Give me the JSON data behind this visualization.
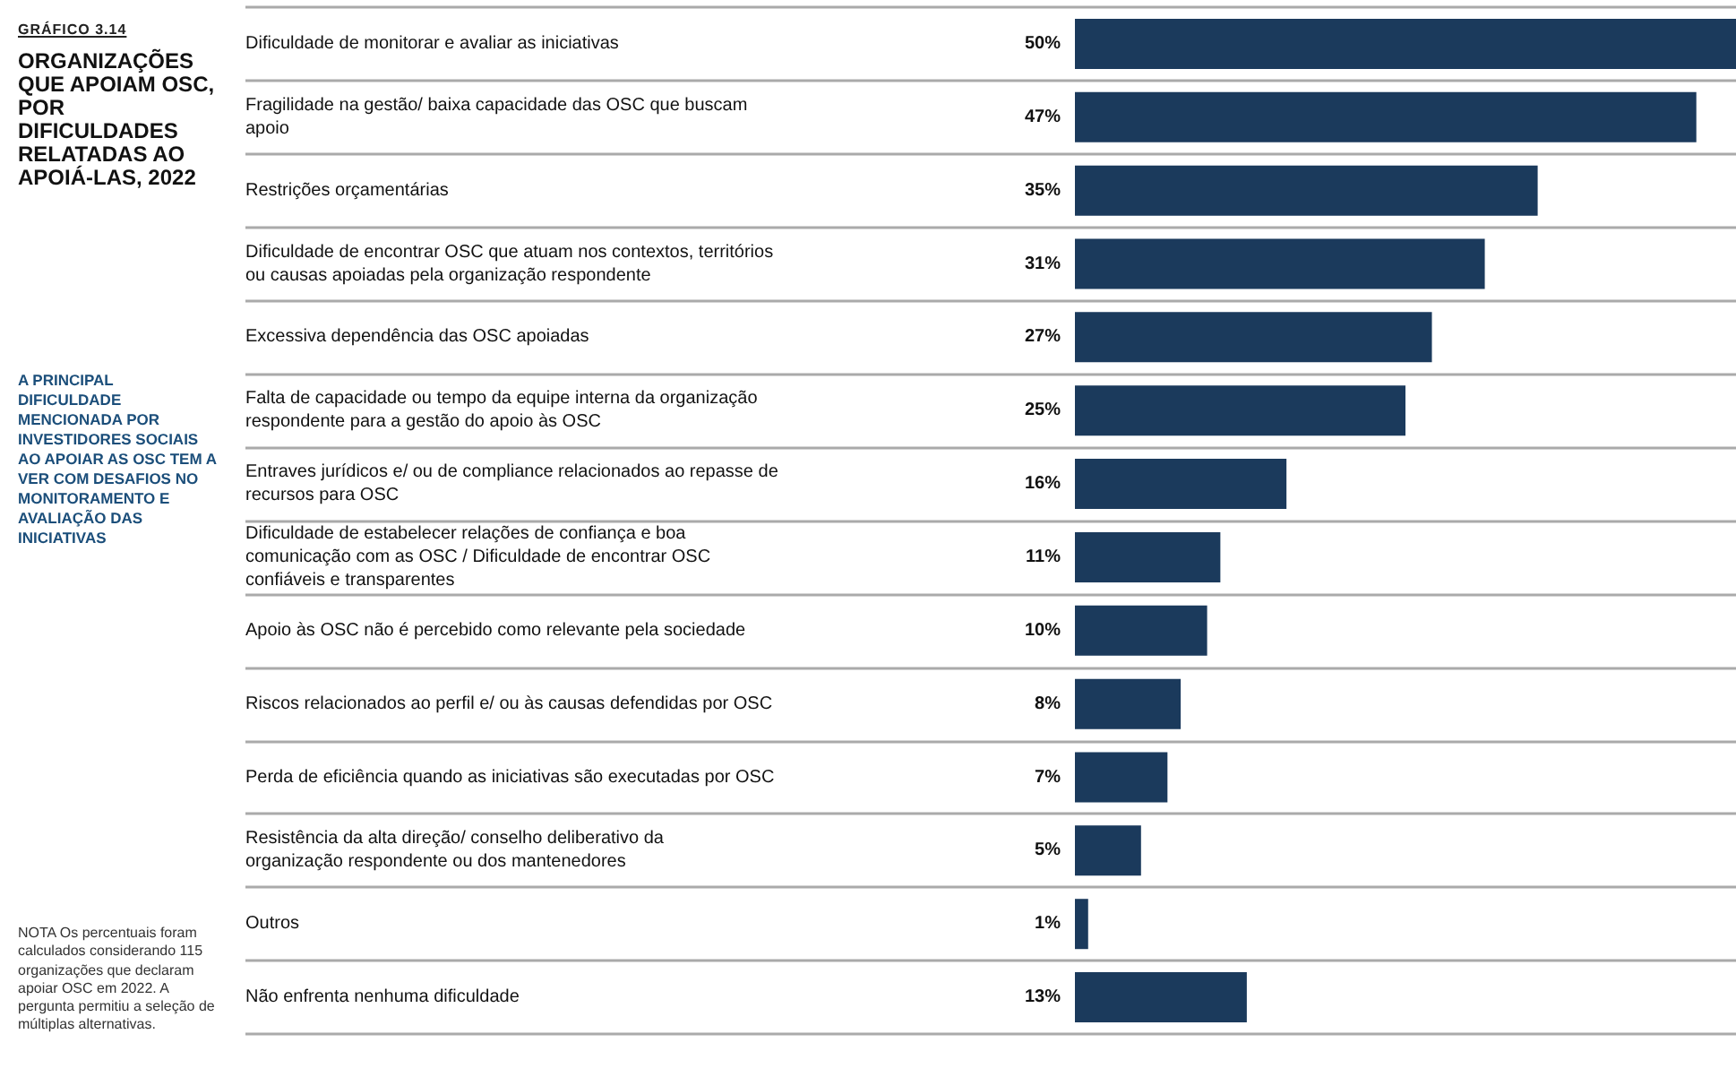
{
  "chart_data": {
    "type": "bar",
    "orientation": "horizontal",
    "title": "ORGANIZAÇÕES QUE APOIAM OSC, POR DIFICULDADES RELATADAS AO APOIÁ-LAS, 2022",
    "annotations": [
      "GRÁFICO 3.14",
      "A PRINCIPAL DIFICULDADE MENCIONADA POR INVESTIDORES SOCIAIS AO APOIAR AS OSC TEM A VER COM DESAFIOS NO MONITORAMENTO E AVALIAÇÃO DAS INICIATIVAS",
      "NOTA Os percentuais foram calculados considerando 115 organizações que declaram apoiar OSC em 2022. A pergunta permitiu a seleção de múltiplas alternativas."
    ],
    "categories": [
      "Dificuldade de monitorar e avaliar as iniciativas",
      "Fragilidade na gestão/ baixa capacidade das OSC que buscam apoio",
      "Restrições orçamentárias",
      "Dificuldade de encontrar OSC que atuam nos contextos, territórios ou causas apoiadas pela organização respondente",
      "Excessiva dependência das OSC apoiadas",
      "Falta de capacidade ou tempo da equipe interna da organização respondente para a gestão do apoio às OSC",
      "Entraves jurídicos e/ ou de compliance relacionados ao repasse de recursos para OSC",
      "Dificuldade de estabelecer relações de confiança e boa comunicação com as OSC / Dificuldade de encontrar OSC confiáveis e transparentes",
      "Apoio às OSC não é percebido como relevante pela sociedade",
      "Riscos relacionados ao perfil e/ ou às causas defendidas por OSC",
      "Perda de eficiência quando as iniciativas são executadas por OSC",
      "Resistência da alta direção/ conselho deliberativo da organização respondente ou dos mantenedores",
      "Outros",
      "Não enfrenta nenhuma dificuldade"
    ],
    "values": [
      50,
      47,
      35,
      31,
      27,
      25,
      16,
      11,
      10,
      8,
      7,
      5,
      1,
      13
    ],
    "value_labels": [
      "50%",
      "47%",
      "35%",
      "31%",
      "27%",
      "25%",
      "16%",
      "11%",
      "10%",
      "8%",
      "7%",
      "5%",
      "1%",
      "13%"
    ],
    "color": "#1b3a5c",
    "grid": "y"
  }
}
